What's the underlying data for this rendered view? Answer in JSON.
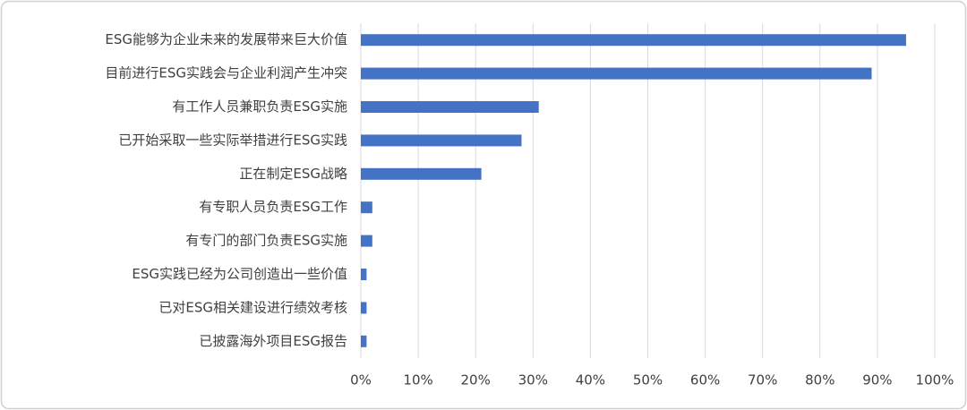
{
  "chart_data": {
    "type": "barh",
    "categories": [
      "ESG能够为企业未来的发展带来巨大价值",
      "目前进行ESG实践会与企业利润产生冲突",
      "有工作人员兼职负责ESG实施",
      "已开始采取一些实际举措进行ESG实践",
      "正在制定ESG战略",
      "有专职人员负责ESG工作",
      "有专门的部门负责ESG实施",
      "ESG实践已经为公司创造出一些价值",
      "已对ESG相关建设进行绩效考核",
      "已披露海外项目ESG报告"
    ],
    "values": [
      95,
      89,
      31,
      28,
      21,
      2,
      2,
      1,
      1,
      1
    ],
    "color": "#4472c4",
    "xlim": [
      0,
      100
    ],
    "xticks": [
      {
        "value": 0,
        "label": "0%"
      },
      {
        "value": 10,
        "label": "10%"
      },
      {
        "value": 20,
        "label": "20%"
      },
      {
        "value": 30,
        "label": "30%"
      },
      {
        "value": 40,
        "label": "40%"
      },
      {
        "value": 50,
        "label": "50%"
      },
      {
        "value": 60,
        "label": "60%"
      },
      {
        "value": 70,
        "label": "70%"
      },
      {
        "value": 80,
        "label": "80%"
      },
      {
        "value": 90,
        "label": "90%"
      },
      {
        "value": 100,
        "label": "100%"
      }
    ],
    "grid": true
  }
}
